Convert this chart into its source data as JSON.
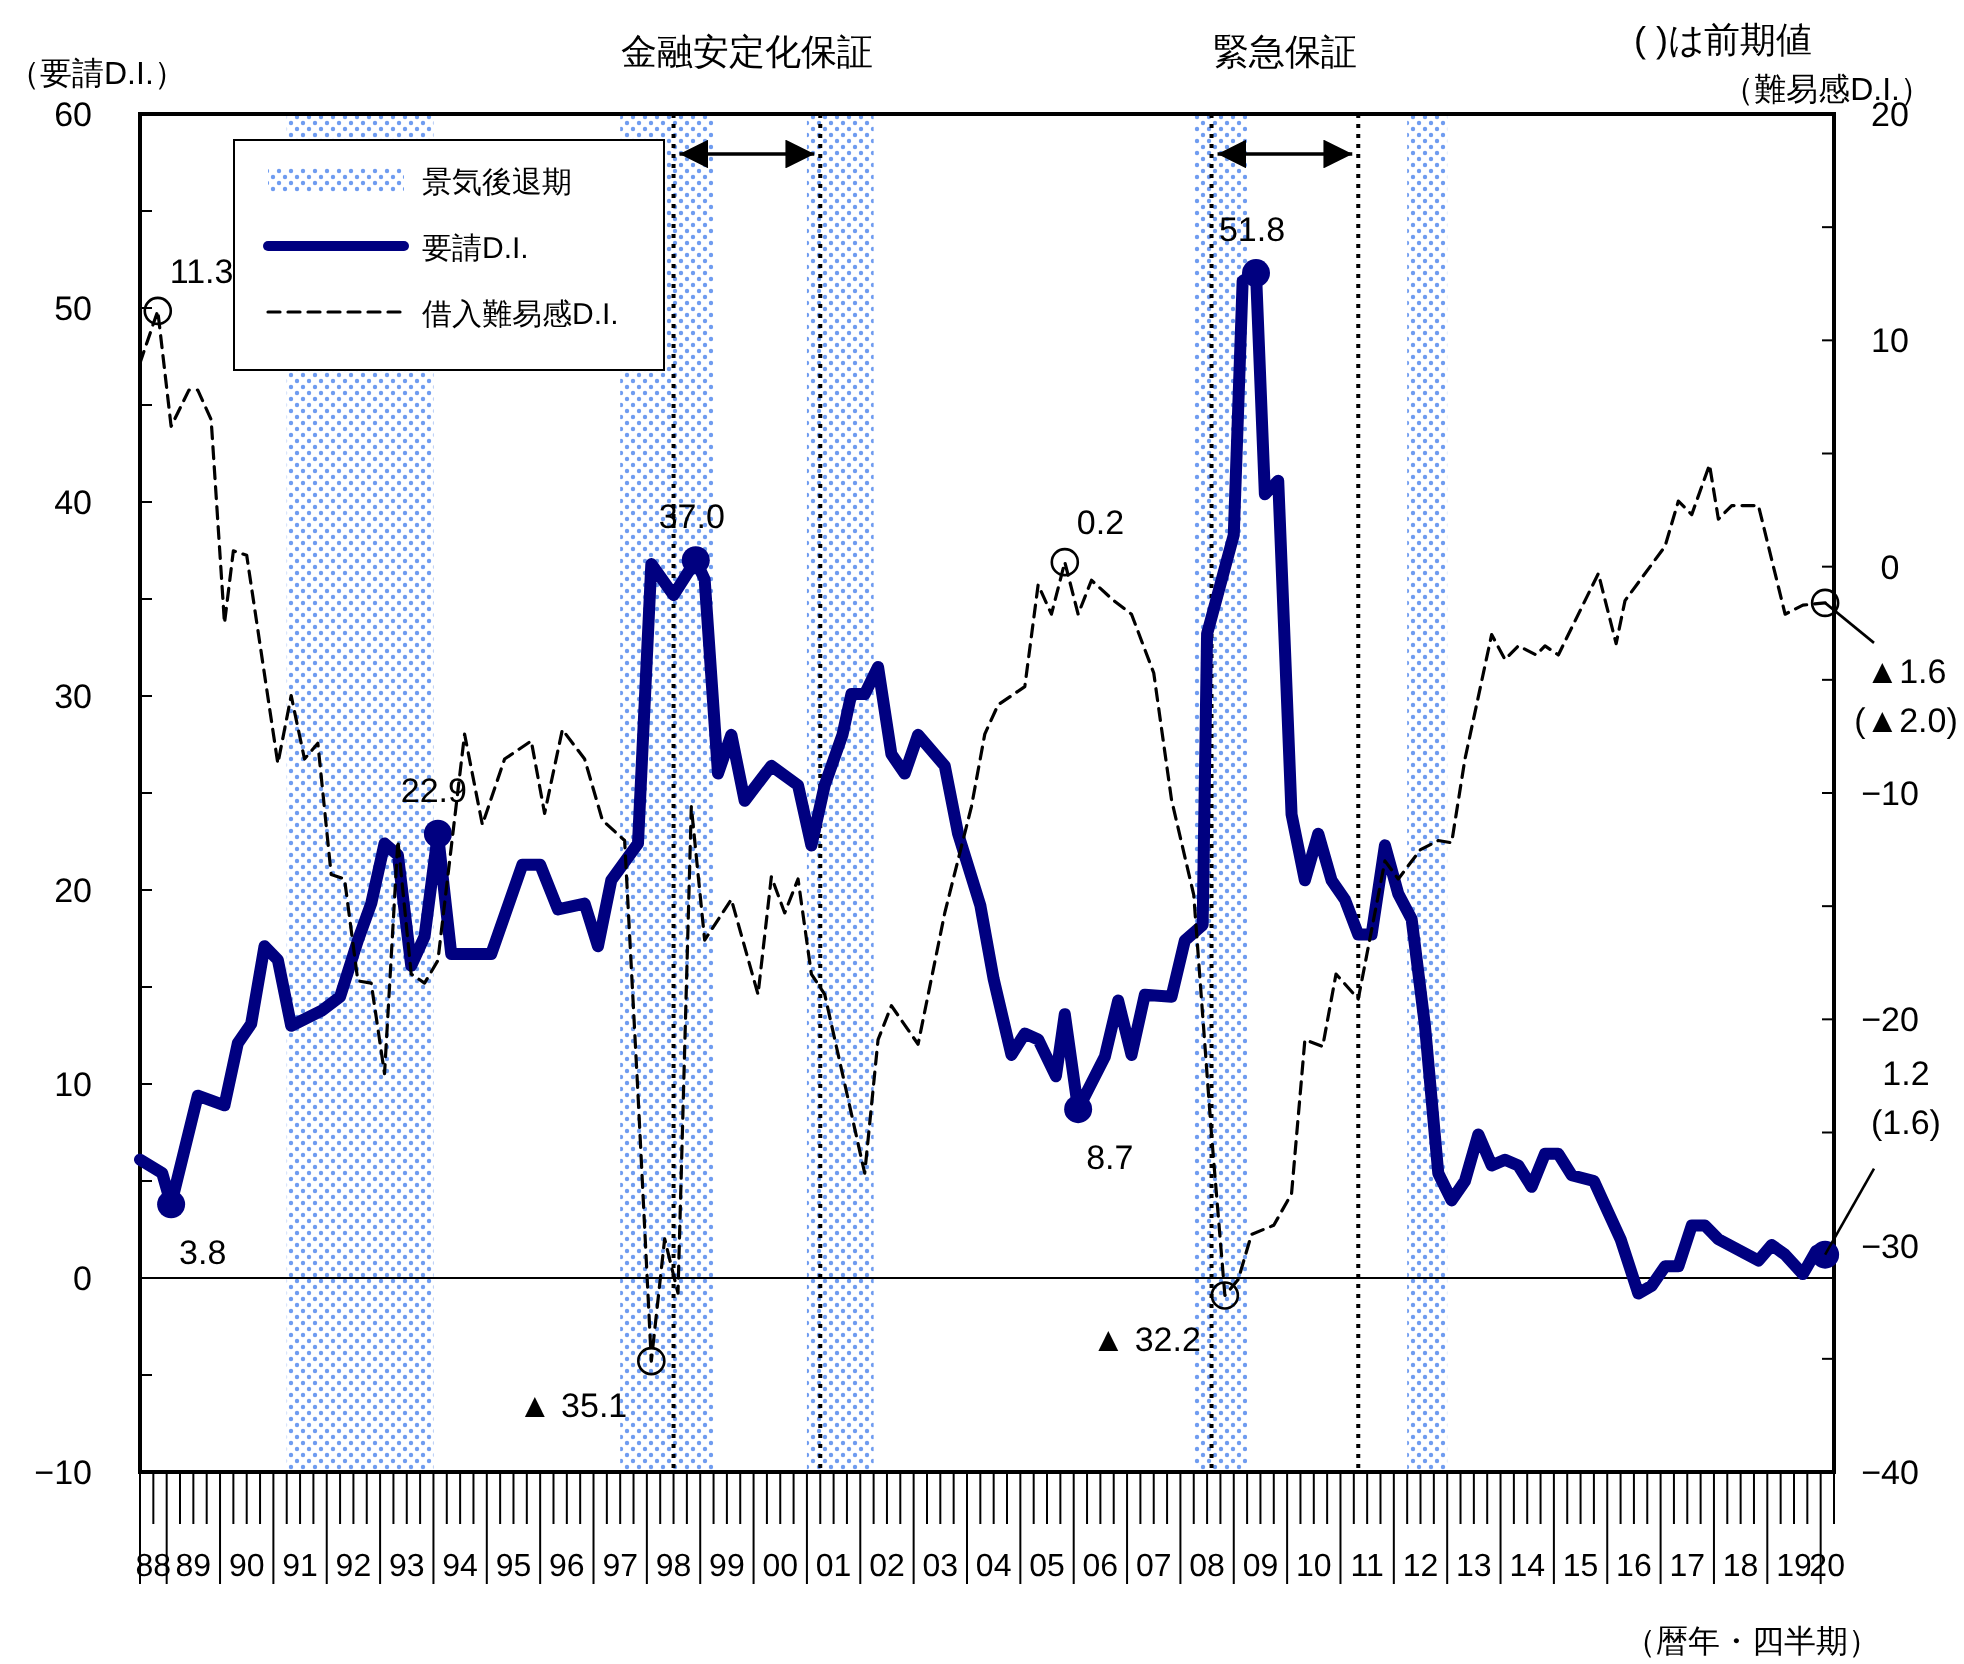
{
  "chart_data": {
    "type": "line",
    "xlabel": "（暦年・四半期）",
    "ylabel": "（要請D.I.）",
    "y2label": "（難易感D.I.）",
    "annotations": [
      "( )は前期値",
      "▲ 35.1",
      "▲ 32.2"
    ],
    "legend": "top left",
    "xlim": [
      "1988-07",
      "2020-04"
    ],
    "xticks": [
      {
        "value": "1988-10",
        "label": "88"
      },
      {
        "value": "1989-07",
        "label": "89"
      },
      {
        "value": "1990-07",
        "label": "90"
      },
      {
        "value": "1991-07",
        "label": "91"
      },
      {
        "value": "1992-07",
        "label": "92"
      },
      {
        "value": "1993-07",
        "label": "93"
      },
      {
        "value": "1994-07",
        "label": "94"
      },
      {
        "value": "1995-07",
        "label": "95"
      },
      {
        "value": "1996-07",
        "label": "96"
      },
      {
        "value": "1997-07",
        "label": "97"
      },
      {
        "value": "1998-07",
        "label": "98"
      },
      {
        "value": "1999-07",
        "label": "99"
      },
      {
        "value": "2000-07",
        "label": "00"
      },
      {
        "value": "2001-07",
        "label": "01"
      },
      {
        "value": "2002-07",
        "label": "02"
      },
      {
        "value": "2003-07",
        "label": "03"
      },
      {
        "value": "2004-07",
        "label": "04"
      },
      {
        "value": "2005-07",
        "label": "05"
      },
      {
        "value": "2006-07",
        "label": "06"
      },
      {
        "value": "2007-07",
        "label": "07"
      },
      {
        "value": "2008-07",
        "label": "08"
      },
      {
        "value": "2009-07",
        "label": "09"
      },
      {
        "value": "2010-07",
        "label": "10"
      },
      {
        "value": "2011-07",
        "label": "11"
      },
      {
        "value": "2012-07",
        "label": "12"
      },
      {
        "value": "2013-07",
        "label": "13"
      },
      {
        "value": "2014-07",
        "label": "14"
      },
      {
        "value": "2015-07",
        "label": "15"
      },
      {
        "value": "2016-07",
        "label": "16"
      },
      {
        "value": "2017-07",
        "label": "17"
      },
      {
        "value": "2018-07",
        "label": "18"
      },
      {
        "value": "2019-07",
        "label": "19"
      },
      {
        "value": "2020-02-15",
        "label": "20"
      }
    ],
    "ylim": [
      -10,
      60
    ],
    "yticks": [
      -10,
      {
        "value": -5,
        "label": null
      },
      0,
      {
        "value": 5,
        "label": null
      },
      10,
      {
        "value": 15,
        "label": null
      },
      20,
      {
        "value": 25,
        "label": null
      },
      30,
      {
        "value": 35,
        "label": null
      },
      40,
      {
        "value": 45,
        "label": null
      },
      50,
      {
        "value": 55,
        "label": null
      },
      60
    ],
    "y2lim": [
      -40,
      20
    ],
    "y2ticks": [
      -40,
      {
        "value": -35,
        "label": null
      },
      -30,
      {
        "value": -25,
        "label": null
      },
      -20,
      {
        "value": -15,
        "label": null
      },
      -10,
      {
        "value": -5,
        "label": null
      },
      0,
      {
        "value": 5,
        "label": null
      },
      10,
      {
        "value": 15,
        "label": null
      },
      20
    ],
    "bands": [
      {
        "axis": "x",
        "from": "1991-04",
        "to": "1994-01",
        "label": "景気後退期",
        "color": "#6f9cf0"
      },
      {
        "axis": "x",
        "from": "1997-07",
        "to": "1999-04",
        "color": "#6f9cf0"
      },
      {
        "axis": "x",
        "from": "2001-01",
        "to": "2002-04",
        "color": "#6f9cf0"
      },
      {
        "axis": "x",
        "from": "2008-04",
        "to": "2009-04",
        "color": "#6f9cf0"
      },
      {
        "axis": "x",
        "from": "2012-04",
        "to": "2013-01",
        "color": "#6f9cf0"
      }
    ],
    "ref_lines": [
      {
        "axis": "y",
        "value": 0,
        "line_style": "solid",
        "color": "#000000"
      },
      {
        "axis": "x",
        "value": "1998-07",
        "label": "金融安定化保証",
        "line_style": "dotted",
        "color": "#000000"
      },
      {
        "axis": "x",
        "value": "2001-04",
        "line_style": "dotted",
        "color": "#000000"
      },
      {
        "axis": "x",
        "value": "2008-08",
        "label": "緊急保証",
        "line_style": "dotted",
        "color": "#000000"
      },
      {
        "axis": "x",
        "value": "2011-05",
        "line_style": "dotted",
        "color": "#000000"
      }
    ],
    "series": [
      {
        "name": "要請D.I.",
        "color": "#000080",
        "line_style": "solid",
        "x": [
          "1988-07",
          "1988-12",
          "1989-02",
          "1989-08",
          "1990-02",
          "1990-05",
          "1990-08",
          "1990-11",
          "1991-02",
          "1991-05",
          "1991-12",
          "1992-04",
          "1992-08",
          "1992-11",
          "1993-02",
          "1993-05",
          "1993-08",
          "1993-11",
          "1994-02",
          "1994-05",
          "1995-02",
          "1995-09",
          "1996-01",
          "1996-05",
          "1996-11",
          "1997-02",
          "1997-05",
          "1997-11",
          "1998-02",
          "1998-07",
          "1998-12",
          "1999-02",
          "1999-05",
          "1999-08",
          "1999-11",
          "2000-05",
          "2000-11",
          "2001-02",
          "2001-05",
          "2001-09",
          "2001-11",
          "2002-02",
          "2002-05",
          "2002-08",
          "2002-11",
          "2003-02",
          "2003-08",
          "2003-11",
          "2004-04",
          "2004-07",
          "2004-11",
          "2005-02",
          "2005-05",
          "2005-09",
          "2005-11",
          "2006-02",
          "2006-08",
          "2006-11",
          "2007-02",
          "2007-05",
          "2007-11",
          "2008-02",
          "2008-06",
          "2008-07",
          "2009-01",
          "2009-03",
          "2009-06",
          "2009-08",
          "2009-11",
          "2010-02",
          "2010-05",
          "2010-08",
          "2010-11",
          "2011-02",
          "2011-05",
          "2011-08",
          "2011-11",
          "2012-02",
          "2012-05",
          "2012-08",
          "2012-11",
          "2013-02",
          "2013-05",
          "2013-08",
          "2013-11",
          "2014-02",
          "2014-05",
          "2014-08",
          "2014-11",
          "2015-02",
          "2015-05",
          "2015-10",
          "2015-12",
          "2016-04",
          "2016-08",
          "2016-11",
          "2017-02",
          "2017-05",
          "2017-08",
          "2017-11",
          "2018-02",
          "2018-11",
          "2019-02",
          "2019-05",
          "2019-09",
          "2019-12",
          "2020-02"
        ],
        "values": [
          6.1,
          5.4,
          3.8,
          9.4,
          8.9,
          12.1,
          13.1,
          17.1,
          16.4,
          13.0,
          13.8,
          14.5,
          17.4,
          19.3,
          22.4,
          21.8,
          16.1,
          17.6,
          22.9,
          16.7,
          16.7,
          21.3,
          21.3,
          19.0,
          19.3,
          17.1,
          20.5,
          22.4,
          36.8,
          35.2,
          37.0,
          36.0,
          26.0,
          28.0,
          24.6,
          26.4,
          25.4,
          22.3,
          25.4,
          28.0,
          30.1,
          30.1,
          31.5,
          27.0,
          26.0,
          28.0,
          26.4,
          22.9,
          19.2,
          15.4,
          11.5,
          12.6,
          12.3,
          10.4,
          13.6,
          8.7,
          11.4,
          14.3,
          11.5,
          14.6,
          14.5,
          17.4,
          18.2,
          33.2,
          38.3,
          51.4,
          51.8,
          40.4,
          41.1,
          23.9,
          20.5,
          22.9,
          20.5,
          19.5,
          17.7,
          17.7,
          22.3,
          19.8,
          18.5,
          13.0,
          5.4,
          4.0,
          5.0,
          7.4,
          5.8,
          6.1,
          5.8,
          4.7,
          6.4,
          6.4,
          5.3,
          5.0,
          4.0,
          2.0,
          -0.8,
          -0.4,
          0.6,
          0.6,
          2.7,
          2.7,
          2.0,
          0.9,
          1.7,
          1.2,
          0.2,
          1.4,
          1.2
        ],
        "value_labels": [
          null,
          null,
          "3.8",
          null,
          null,
          null,
          null,
          null,
          null,
          null,
          null,
          null,
          null,
          null,
          null,
          null,
          null,
          null,
          "22.9",
          null,
          null,
          null,
          null,
          null,
          null,
          null,
          null,
          null,
          null,
          null,
          "37.0",
          null,
          null,
          null,
          null,
          null,
          null,
          null,
          null,
          null,
          null,
          null,
          null,
          null,
          null,
          null,
          null,
          null,
          null,
          null,
          null,
          null,
          null,
          null,
          null,
          "8.7",
          null,
          null,
          null,
          null,
          null,
          null,
          null,
          null,
          null,
          null,
          "51.8",
          null,
          null,
          null,
          null,
          null,
          null,
          null,
          null,
          null,
          null,
          null,
          null,
          null,
          null,
          null,
          null,
          null,
          null,
          null,
          null,
          null,
          null,
          null,
          null,
          null,
          null,
          null,
          null,
          null,
          null,
          null,
          null,
          null,
          null,
          null,
          null,
          null,
          null,
          null,
          "1.2\n(1.6)"
        ]
      },
      {
        "name": "借入難易感D.I.",
        "color": "#000000",
        "line_style": "dashed",
        "axis": "y2",
        "x": [
          "1988-07",
          "1988-11",
          "1989-02",
          "1989-06",
          "1989-08",
          "1989-11",
          "1990-02",
          "1990-04",
          "1990-07",
          "1991-02",
          "1991-05",
          "1991-08",
          "1991-11",
          "1992-02",
          "1992-05",
          "1992-08",
          "1992-11",
          "1993-02",
          "1993-05",
          "1993-08",
          "1993-11",
          "1994-02",
          "1994-08",
          "1994-12",
          "1995-05",
          "1995-11",
          "1996-02",
          "1996-06",
          "1996-11",
          "1997-03",
          "1997-08",
          "1997-11",
          "1998-02",
          "1998-05",
          "1998-08",
          "1998-11",
          "1999-02",
          "1999-08",
          "2000-02",
          "2000-05",
          "2000-08",
          "2000-11",
          "2001-02",
          "2001-05",
          "2002-02",
          "2002-05",
          "2002-08",
          "2003-02",
          "2003-08",
          "2004-02",
          "2004-05",
          "2004-08",
          "2005-02",
          "2005-05",
          "2005-08",
          "2005-11",
          "2006-02",
          "2006-05",
          "2006-10",
          "2007-02",
          "2007-07",
          "2007-11",
          "2008-04",
          "2008-08",
          "2008-11",
          "2009-02",
          "2009-05",
          "2009-10",
          "2010-02",
          "2010-05",
          "2010-09",
          "2010-12",
          "2011-05",
          "2011-11",
          "2012-02",
          "2012-07",
          "2012-11",
          "2013-02",
          "2013-05",
          "2013-11",
          "2014-02",
          "2014-05",
          "2014-09",
          "2014-11",
          "2015-02",
          "2015-08",
          "2015-11",
          "2016-03",
          "2016-05",
          "2017-02",
          "2017-05",
          "2017-08",
          "2017-12",
          "2018-02",
          "2018-05",
          "2018-11",
          "2019-05",
          "2019-09",
          "2020-02"
        ],
        "values": [
          9.0,
          11.3,
          6.2,
          7.8,
          7.8,
          6.5,
          -2.5,
          0.7,
          0.5,
          -8.7,
          -5.7,
          -8.5,
          -7.8,
          -13.6,
          -13.8,
          -18.3,
          -18.4,
          -22.4,
          -12.1,
          -18.0,
          -18.4,
          -17.4,
          -7.4,
          -11.4,
          -8.5,
          -7.7,
          -10.9,
          -7.2,
          -8.5,
          -11.2,
          -12.1,
          -23.3,
          -35.1,
          -29.7,
          -32.1,
          -10.6,
          -16.5,
          -14.7,
          -18.9,
          -13.7,
          -15.3,
          -13.8,
          -18.0,
          -18.9,
          -26.8,
          -20.9,
          -19.4,
          -21.1,
          -15.3,
          -10.6,
          -7.4,
          -6.1,
          -5.3,
          -0.8,
          -2.1,
          0.2,
          -2.1,
          -0.6,
          -1.5,
          -2.1,
          -4.7,
          -10.3,
          -14.5,
          -25.1,
          -32.2,
          -31.5,
          -29.5,
          -29.1,
          -27.7,
          -20.9,
          -21.2,
          -18.0,
          -19.1,
          -13.0,
          -13.8,
          -12.5,
          -12.1,
          -12.2,
          -8.5,
          -3.0,
          -4.1,
          -3.5,
          -3.9,
          -3.5,
          -3.9,
          -1.5,
          -0.3,
          -3.4,
          -1.5,
          0.9,
          2.9,
          2.3,
          4.5,
          2.1,
          2.7,
          2.7,
          -2.1,
          -1.7,
          -1.6
        ],
        "value_labels": [
          null,
          "11.3",
          null,
          null,
          null,
          null,
          null,
          null,
          null,
          null,
          null,
          null,
          null,
          null,
          null,
          null,
          null,
          null,
          null,
          null,
          null,
          null,
          null,
          null,
          null,
          null,
          null,
          null,
          null,
          null,
          null,
          null,
          null,
          null,
          null,
          null,
          null,
          null,
          null,
          null,
          null,
          null,
          null,
          null,
          null,
          null,
          null,
          null,
          null,
          null,
          null,
          null,
          null,
          null,
          null,
          "0.2",
          null,
          null,
          null,
          null,
          null,
          null,
          null,
          null,
          null,
          null,
          null,
          null,
          null,
          null,
          null,
          null,
          null,
          null,
          null,
          null,
          null,
          null,
          null,
          null,
          null,
          null,
          null,
          null,
          null,
          null,
          null,
          null,
          null,
          null,
          null,
          null,
          null,
          null,
          null,
          null,
          null,
          null,
          "▲1.6\n(▲2.0)"
        ]
      }
    ]
  }
}
